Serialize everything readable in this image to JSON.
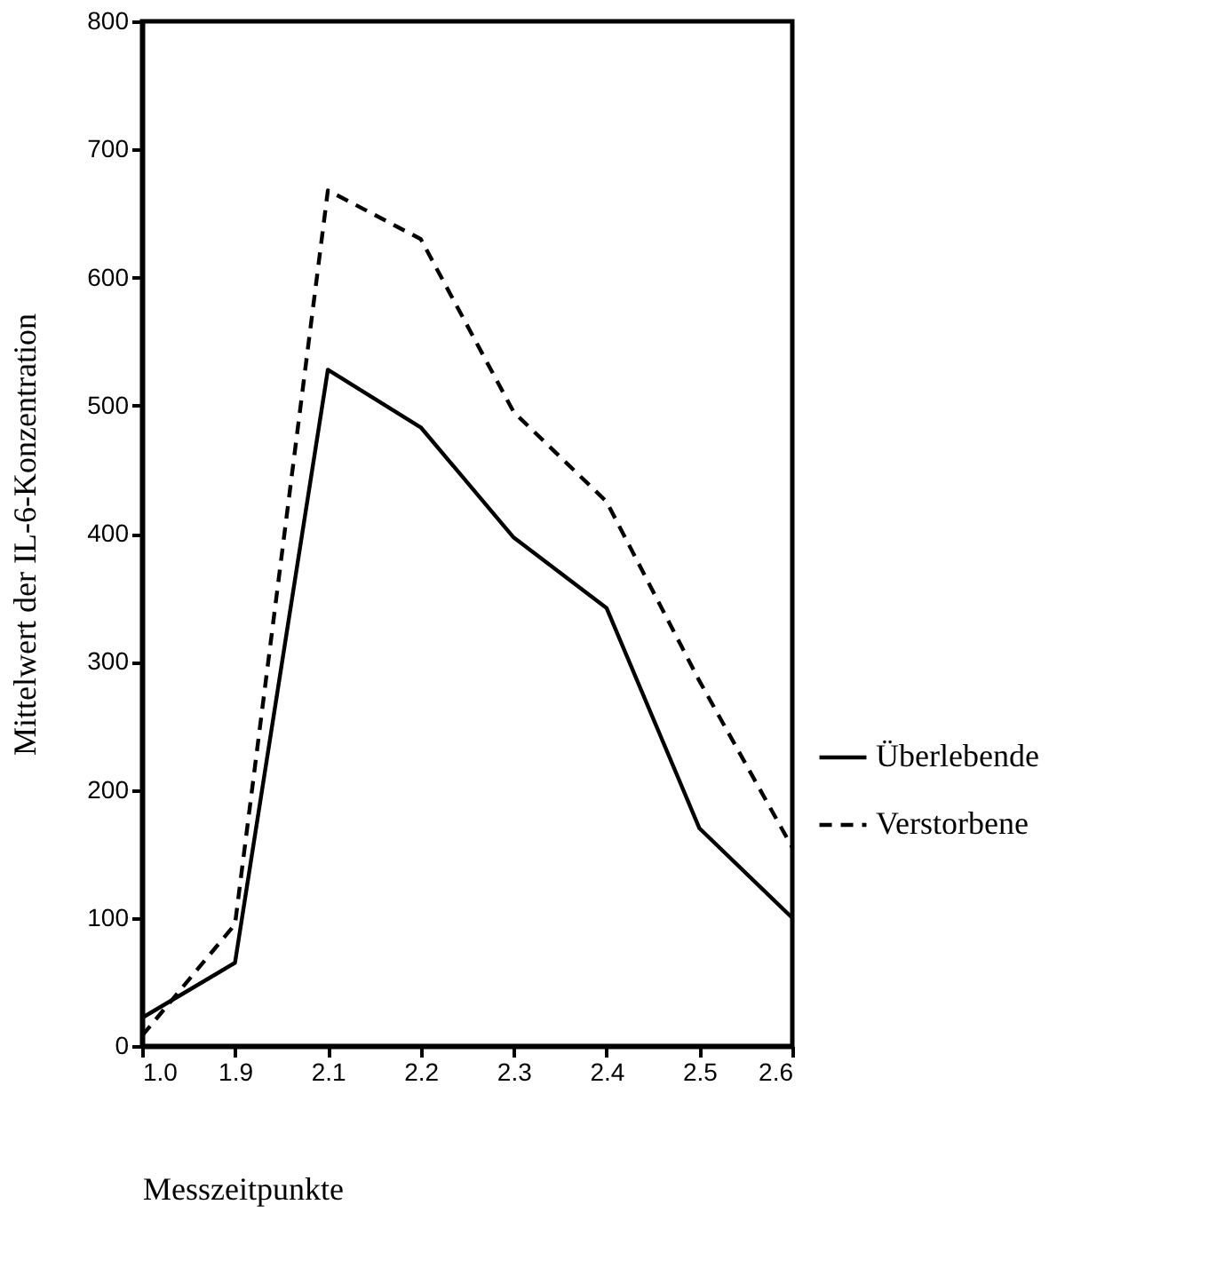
{
  "chart_data": {
    "type": "line",
    "xlabel": "Messzeitpunkte",
    "ylabel": "Mittelwert der IL-6-Konzentration",
    "categories": [
      "1.0",
      "1.9",
      "2.1",
      "2.2",
      "2.3",
      "2.4",
      "2.5",
      "2.6"
    ],
    "series": [
      {
        "name": "Überlebende",
        "color": "#000000",
        "line_style": "solid",
        "values": [
          22,
          65,
          528,
          483,
          397,
          342,
          170,
          100
        ]
      },
      {
        "name": "Verstorbene",
        "color": "#000000",
        "line_style": "dashed",
        "values": [
          8,
          95,
          668,
          630,
          495,
          425,
          285,
          155
        ]
      }
    ],
    "ylim": [
      0,
      800
    ],
    "yticks": [
      0,
      100,
      200,
      300,
      400,
      500,
      600,
      700,
      800
    ],
    "grid": false,
    "legend": "right",
    "marker": "none"
  }
}
